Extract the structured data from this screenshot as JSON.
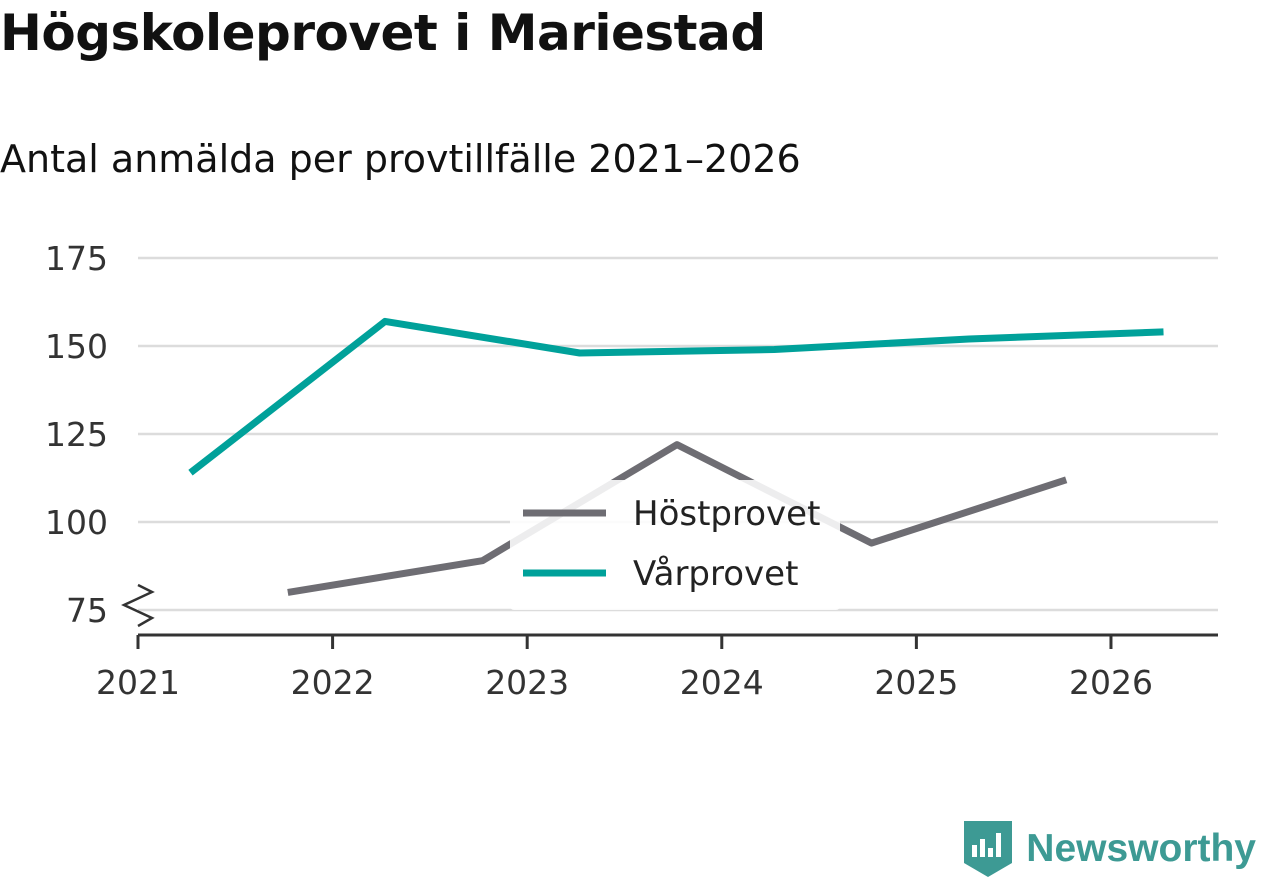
{
  "chart_data": {
    "type": "line",
    "title": "Högskoleprovet i Mariestad",
    "subtitle": "Antal anmälda per provtillfälle 2021–2026",
    "x_ticks": [
      "2021",
      "2022",
      "2023",
      "2024",
      "2025",
      "2026"
    ],
    "y_ticks": [
      75,
      100,
      125,
      150,
      175
    ],
    "ylim": [
      68,
      178
    ],
    "xlim": [
      2021,
      2026.55
    ],
    "axis_break": true,
    "series": [
      {
        "name": "Höstprovet",
        "color": "#6e6d73",
        "points": [
          {
            "x": 2021.77,
            "y": 80
          },
          {
            "x": 2022.77,
            "y": 89
          },
          {
            "x": 2023.77,
            "y": 122
          },
          {
            "x": 2024.77,
            "y": 94
          },
          {
            "x": 2025.77,
            "y": 112
          }
        ]
      },
      {
        "name": "Vårprovet",
        "color": "#00a19a",
        "points": [
          {
            "x": 2021.27,
            "y": 114
          },
          {
            "x": 2022.27,
            "y": 157
          },
          {
            "x": 2023.27,
            "y": 148
          },
          {
            "x": 2024.27,
            "y": 149
          },
          {
            "x": 2025.27,
            "y": 152
          },
          {
            "x": 2026.27,
            "y": 154
          }
        ]
      }
    ],
    "legend": [
      "Höstprovet",
      "Vårprovet"
    ],
    "legend_position": "center"
  },
  "brand": {
    "name": "Newsworthy",
    "color": "#3d9a94"
  }
}
